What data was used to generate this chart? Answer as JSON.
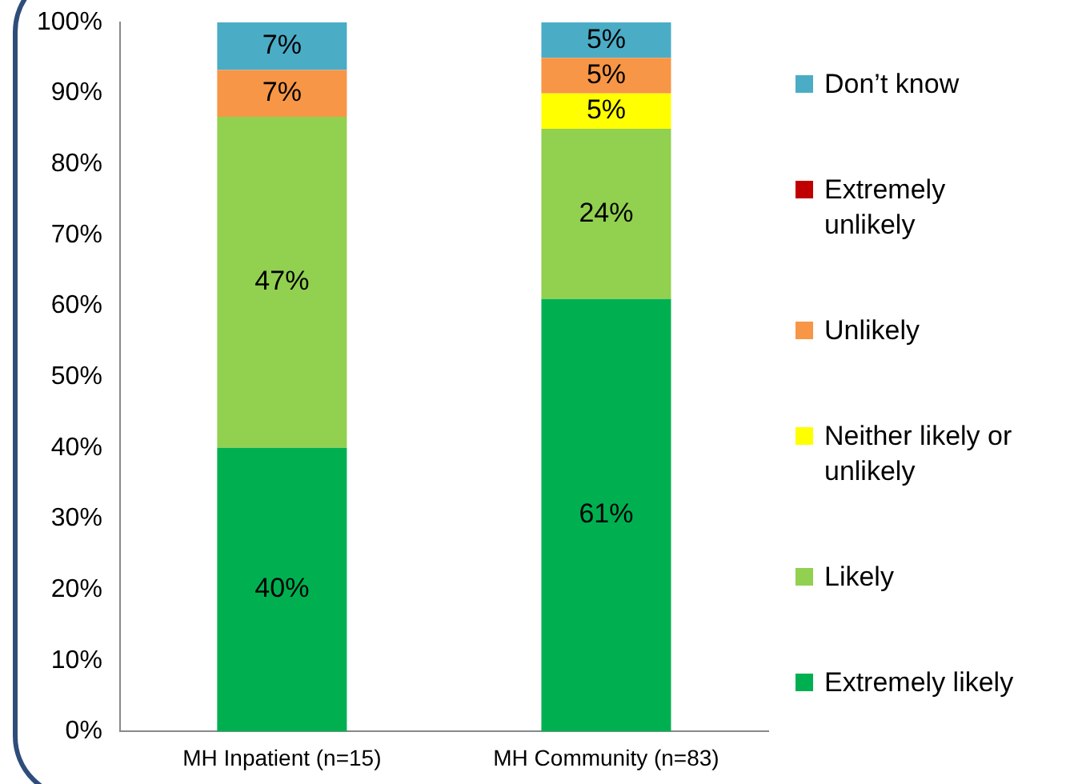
{
  "chart_data": {
    "type": "bar",
    "stacked": true,
    "categories": [
      "MH Inpatient (n=15)",
      "MH Community (n=83)"
    ],
    "series": [
      {
        "name": "Extremely likely",
        "color": "#00b050",
        "values": [
          40,
          61
        ],
        "value_labels": [
          "40%",
          "61%"
        ]
      },
      {
        "name": "Likely",
        "color": "#92d050",
        "values": [
          46.7,
          24
        ],
        "value_labels": [
          "47%",
          "24%"
        ]
      },
      {
        "name": "Neither likely or unlikely",
        "color": "#ffff00",
        "values": [
          0,
          5
        ],
        "value_labels": [
          null,
          "5%"
        ]
      },
      {
        "name": "Unlikely",
        "color": "#f79646",
        "values": [
          6.6,
          5
        ],
        "value_labels": [
          "7%",
          "5%"
        ]
      },
      {
        "name": "Extremely unlikely",
        "color": "#c00000",
        "values": [
          0,
          0
        ],
        "value_labels": [
          null,
          null
        ]
      },
      {
        "name": "Don’t know",
        "color": "#4bacc6",
        "values": [
          6.7,
          5
        ],
        "value_labels": [
          "7%",
          "5%"
        ]
      }
    ],
    "ylim": [
      0,
      100
    ],
    "yticks": [
      {
        "value": 0,
        "label": "0%"
      },
      {
        "value": 10,
        "label": "10%"
      },
      {
        "value": 20,
        "label": "20%"
      },
      {
        "value": 30,
        "label": "30%"
      },
      {
        "value": 40,
        "label": "40%"
      },
      {
        "value": 50,
        "label": "50%"
      },
      {
        "value": 60,
        "label": "60%"
      },
      {
        "value": 70,
        "label": "70%"
      },
      {
        "value": 80,
        "label": "80%"
      },
      {
        "value": 90,
        "label": "90%"
      },
      {
        "value": 100,
        "label": "100%"
      }
    ],
    "grid": false,
    "legend": "right"
  }
}
